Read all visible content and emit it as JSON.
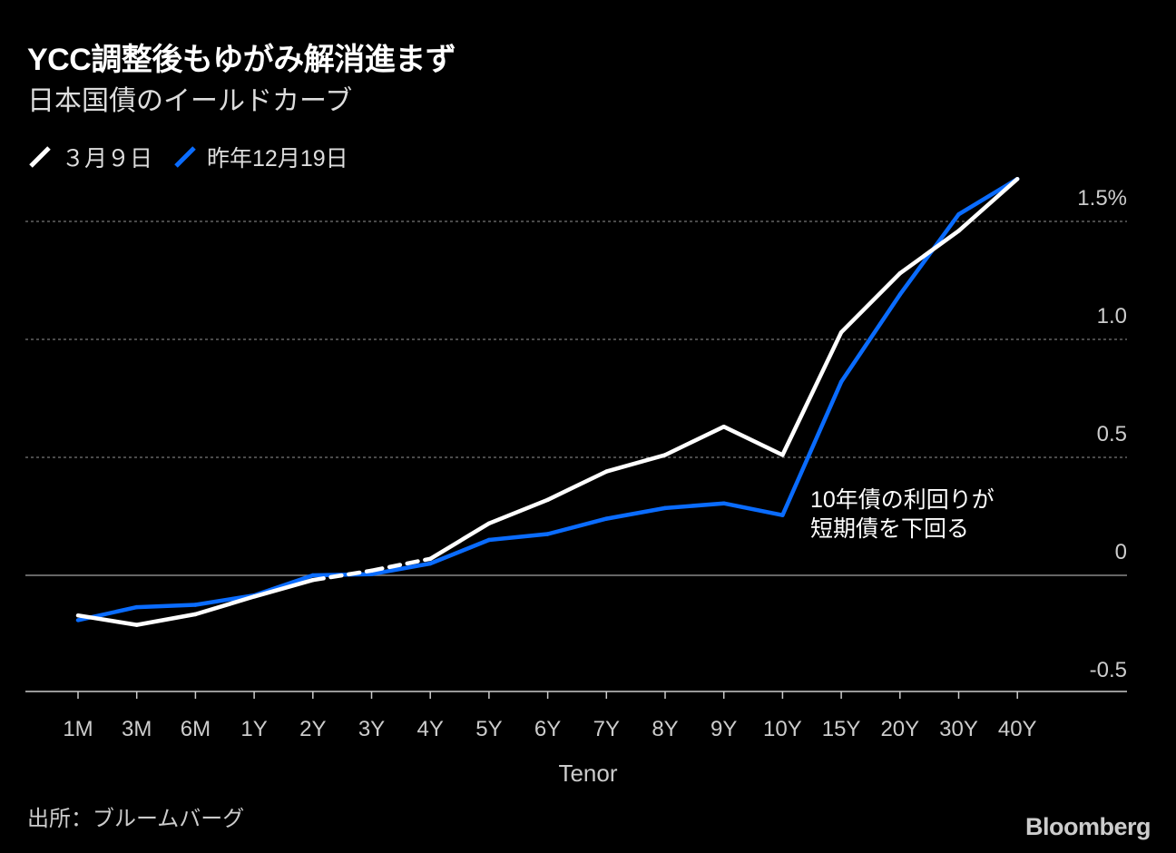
{
  "header": {
    "title": "YCC調整後もゆがみ解消進まず",
    "subtitle": "日本国債のイールドカーブ"
  },
  "legend": [
    {
      "label": "３月９日",
      "color": "#ffffff"
    },
    {
      "label": "昨年12月19日",
      "color": "#0a6cff"
    }
  ],
  "footer": {
    "source": "出所：ブルームバーグ",
    "brand": "Bloomberg"
  },
  "chart_data": {
    "type": "line",
    "title": "YCC調整後もゆがみ解消進まず",
    "subtitle": "日本国債のイールドカーブ",
    "xlabel": "Tenor",
    "ylabel": "",
    "categories": [
      "1M",
      "3M",
      "6M",
      "1Y",
      "2Y",
      "3Y",
      "4Y",
      "5Y",
      "6Y",
      "7Y",
      "8Y",
      "9Y",
      "10Y",
      "15Y",
      "20Y",
      "30Y",
      "40Y"
    ],
    "ylim": [
      -0.5,
      1.65
    ],
    "yticks": [
      {
        "value": 1.5,
        "label": "1.5%"
      },
      {
        "value": 1.0,
        "label": "1.0"
      },
      {
        "value": 0.5,
        "label": "0.5"
      },
      {
        "value": 0,
        "label": "0"
      },
      {
        "value": -0.5,
        "label": "-0.5"
      }
    ],
    "grid": true,
    "series": [
      {
        "name": "３月９日",
        "color": "#ffffff",
        "values": [
          -0.17,
          -0.21,
          -0.165,
          -0.09,
          -0.02,
          0.02,
          0.07,
          0.22,
          0.32,
          0.44,
          0.51,
          0.63,
          0.51,
          1.03,
          1.28,
          1.46,
          1.68
        ],
        "dashed_segments": [
          [
            4,
            6
          ]
        ]
      },
      {
        "name": "昨年12月19日",
        "color": "#0a6cff",
        "values": [
          -0.19,
          -0.135,
          -0.125,
          -0.085,
          0.0,
          0.005,
          0.05,
          0.15,
          0.175,
          0.24,
          0.285,
          0.305,
          0.255,
          0.82,
          1.19,
          1.53,
          1.68
        ]
      }
    ],
    "annotations": [
      {
        "text_lines": [
          "10年債の利回りが",
          "短期債を下回る"
        ]
      }
    ]
  }
}
